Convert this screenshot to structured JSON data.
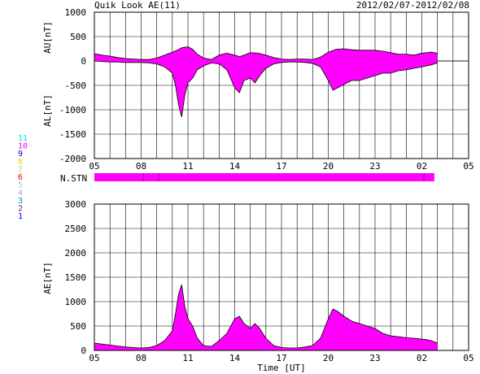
{
  "header": {
    "title": "Quik Look AE(11)",
    "date_range": "2012/02/07-2012/02/08"
  },
  "chart_data": [
    {
      "type": "area",
      "panel": "AU/AL",
      "ylabel_upper": "AU[nT]",
      "ylabel_lower": "AL[nT]",
      "ylim": [
        -2000,
        1000
      ],
      "yticks": [
        1000,
        500,
        0,
        -500,
        -1000,
        -1500,
        -2000
      ],
      "x_range_hours": [
        5,
        29
      ],
      "xtick_labels": [
        "05",
        "08",
        "11",
        "14",
        "17",
        "20",
        "23",
        "02",
        "05"
      ],
      "grid": true,
      "fill_color": "#ff00ff",
      "series": [
        {
          "name": "AU",
          "x": [
            5.0,
            5.5,
            6.0,
            6.5,
            7.0,
            7.5,
            8.0,
            8.5,
            9.0,
            9.5,
            10.0,
            10.3,
            10.6,
            11.0,
            11.3,
            11.6,
            12.0,
            12.5,
            13.0,
            13.5,
            14.0,
            14.3,
            14.6,
            15.0,
            15.5,
            16.0,
            16.5,
            17.0,
            17.5,
            18.0,
            18.5,
            19.0,
            19.5,
            20.0,
            20.5,
            21.0,
            21.5,
            22.0,
            22.5,
            23.0,
            23.5,
            24.0,
            24.5,
            25.0,
            25.5,
            26.0,
            26.3,
            26.6,
            27.0
          ],
          "values": [
            150,
            120,
            100,
            70,
            50,
            40,
            30,
            30,
            60,
            120,
            180,
            220,
            270,
            290,
            240,
            140,
            60,
            30,
            120,
            160,
            120,
            90,
            120,
            170,
            160,
            120,
            70,
            40,
            30,
            40,
            40,
            30,
            80,
            180,
            240,
            250,
            230,
            220,
            220,
            220,
            200,
            170,
            140,
            140,
            120,
            160,
            170,
            180,
            160
          ]
        },
        {
          "name": "AL",
          "x": [
            5.0,
            5.5,
            6.0,
            6.5,
            7.0,
            7.5,
            8.0,
            8.5,
            9.0,
            9.5,
            10.0,
            10.2,
            10.4,
            10.6,
            10.8,
            11.0,
            11.3,
            11.6,
            12.0,
            12.5,
            13.0,
            13.5,
            14.0,
            14.3,
            14.6,
            15.0,
            15.3,
            15.6,
            16.0,
            16.5,
            17.0,
            17.5,
            18.0,
            18.5,
            19.0,
            19.5,
            20.0,
            20.3,
            20.6,
            21.0,
            21.5,
            22.0,
            22.5,
            23.0,
            23.5,
            24.0,
            24.5,
            25.0,
            25.5,
            26.0,
            26.3,
            26.6,
            27.0
          ],
          "values": [
            0,
            -10,
            -20,
            -20,
            -30,
            -30,
            -30,
            -40,
            -60,
            -120,
            -250,
            -500,
            -900,
            -1150,
            -700,
            -450,
            -350,
            -180,
            -100,
            -40,
            -60,
            -180,
            -550,
            -650,
            -400,
            -350,
            -450,
            -300,
            -150,
            -60,
            -30,
            -20,
            -20,
            -30,
            -50,
            -120,
            -400,
            -600,
            -550,
            -480,
            -400,
            -400,
            -350,
            -300,
            -250,
            -250,
            -200,
            -180,
            -150,
            -120,
            -100,
            -80,
            -40
          ]
        }
      ]
    },
    {
      "type": "bar",
      "panel": "N.STN",
      "label": "N.STN",
      "x_range_hours": [
        5,
        26.8
      ],
      "fill_color": "#ff00ff"
    },
    {
      "type": "area",
      "panel": "AE",
      "ylabel": "AE[nT]",
      "xlabel": "Time [UT]",
      "ylim": [
        0,
        3000
      ],
      "yticks": [
        3000,
        2500,
        2000,
        1500,
        1000,
        500,
        0
      ],
      "x_range_hours": [
        5,
        29
      ],
      "xtick_labels": [
        "05",
        "08",
        "11",
        "14",
        "17",
        "20",
        "23",
        "02",
        "05"
      ],
      "grid": true,
      "fill_color": "#ff00ff",
      "series": [
        {
          "name": "AE",
          "x": [
            5.0,
            5.5,
            6.0,
            6.5,
            7.0,
            7.5,
            8.0,
            8.5,
            9.0,
            9.5,
            10.0,
            10.2,
            10.4,
            10.6,
            10.8,
            11.0,
            11.3,
            11.6,
            12.0,
            12.5,
            13.0,
            13.5,
            14.0,
            14.3,
            14.6,
            15.0,
            15.3,
            15.6,
            16.0,
            16.5,
            17.0,
            17.5,
            18.0,
            18.5,
            19.0,
            19.5,
            20.0,
            20.3,
            20.6,
            21.0,
            21.5,
            22.0,
            22.5,
            23.0,
            23.5,
            24.0,
            24.5,
            25.0,
            25.5,
            26.0,
            26.3,
            26.6,
            27.0
          ],
          "values": [
            150,
            130,
            110,
            90,
            70,
            60,
            50,
            60,
            100,
            200,
            400,
            750,
            1150,
            1350,
            900,
            650,
            500,
            250,
            100,
            80,
            200,
            350,
            650,
            700,
            550,
            450,
            550,
            450,
            250,
            100,
            60,
            50,
            50,
            70,
            100,
            250,
            650,
            850,
            800,
            700,
            600,
            550,
            500,
            450,
            350,
            300,
            280,
            260,
            250,
            230,
            220,
            200,
            150
          ]
        }
      ]
    }
  ],
  "legend": {
    "items": [
      {
        "label": "11",
        "color": "#00e0e0"
      },
      {
        "label": "10",
        "color": "#ff00ff"
      },
      {
        "label": "9",
        "color": "#0000cc"
      },
      {
        "label": "8",
        "color": "#e0e000"
      },
      {
        "label": "7",
        "color": "#c8c860"
      },
      {
        "label": "6",
        "color": "#ff0000"
      },
      {
        "label": "5",
        "color": "#c0c0c0"
      },
      {
        "label": "4",
        "color": "#b0b0b0"
      },
      {
        "label": "3",
        "color": "#00a0a0"
      },
      {
        "label": "2",
        "color": "#a000a0"
      },
      {
        "label": "1",
        "color": "#0000ff"
      }
    ]
  }
}
